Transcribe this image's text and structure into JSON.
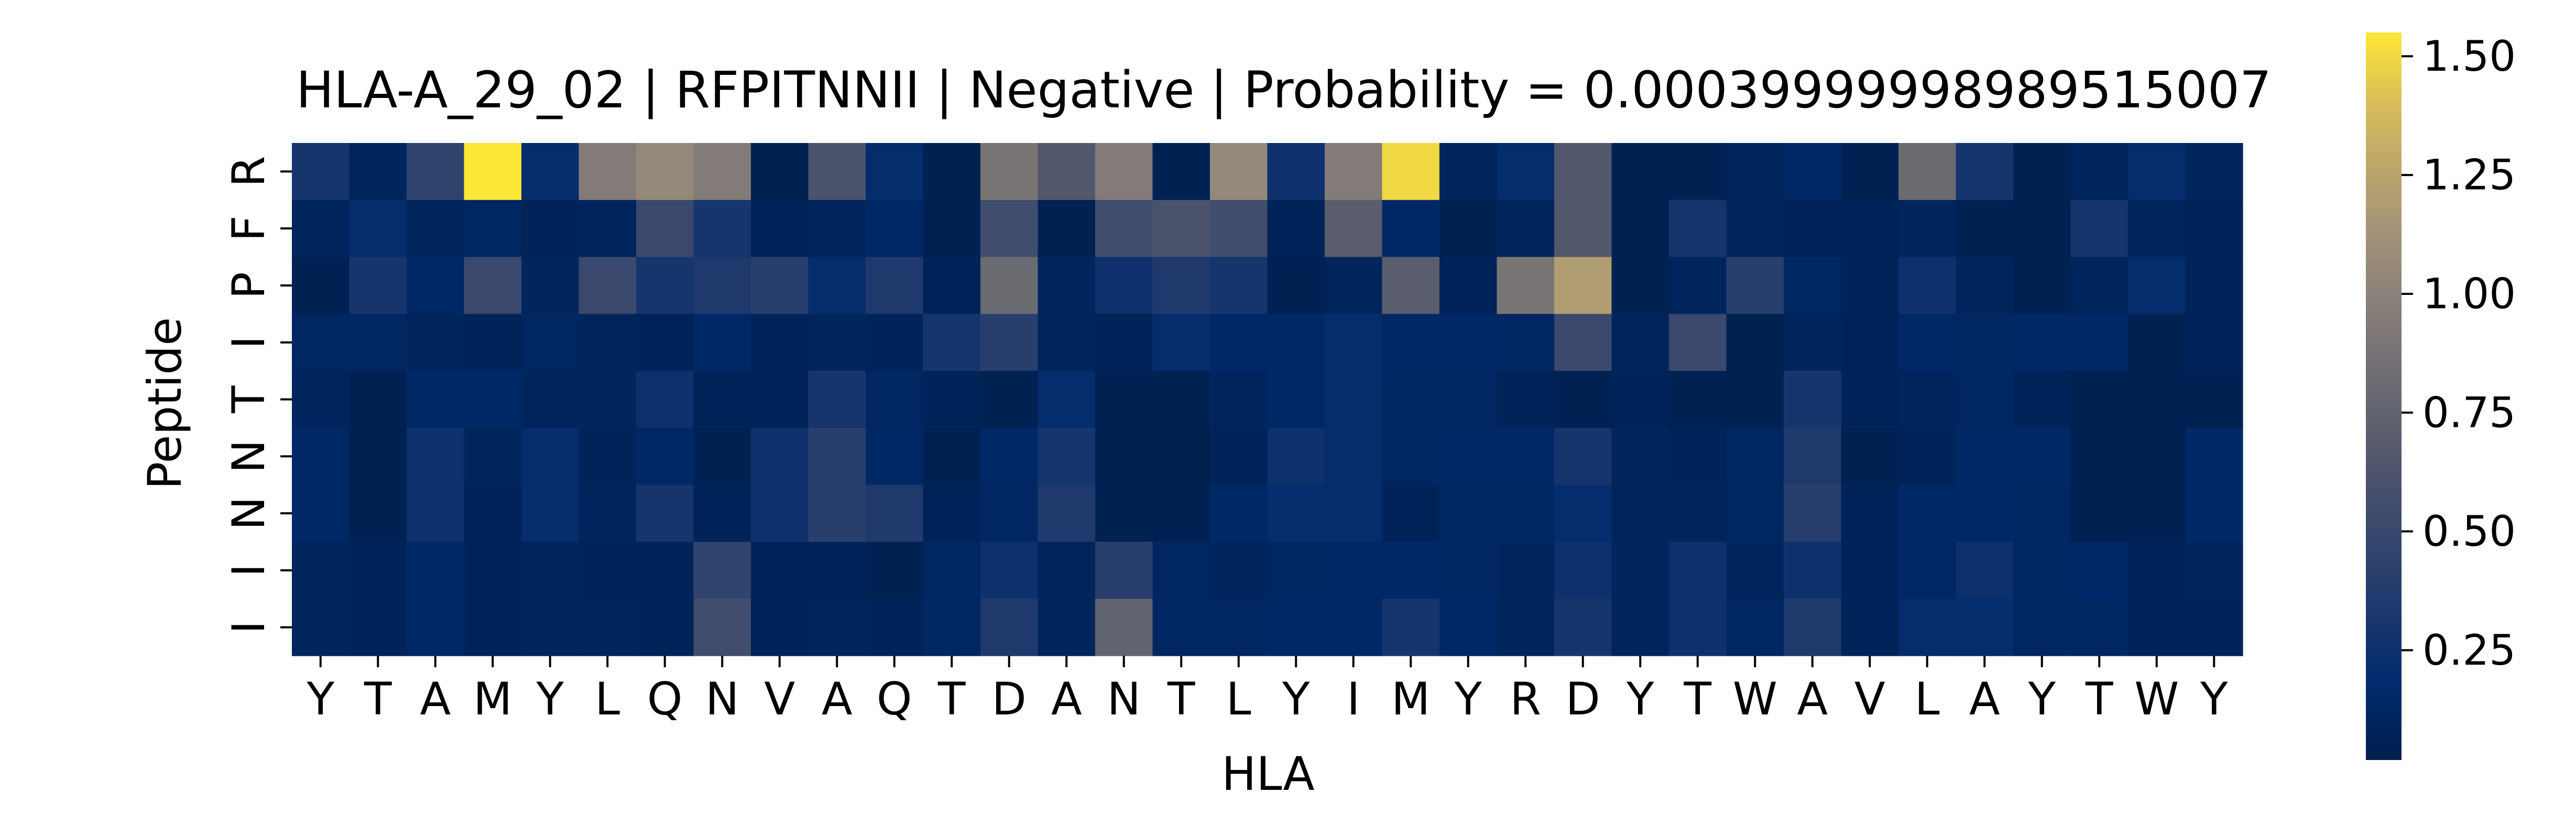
{
  "chart_data": {
    "type": "heatmap",
    "title": "HLA-A_29_02 | RFPITNNII | Negative | Probability = 0.00039999998989515007",
    "xlabel": "HLA",
    "ylabel": "Peptide",
    "x_ticks": [
      "Y",
      "T",
      "A",
      "M",
      "Y",
      "L",
      "Q",
      "N",
      "V",
      "A",
      "Q",
      "T",
      "D",
      "A",
      "N",
      "T",
      "L",
      "Y",
      "I",
      "M",
      "Y",
      "R",
      "D",
      "Y",
      "T",
      "W",
      "A",
      "V",
      "L",
      "A",
      "Y",
      "T",
      "W",
      "Y"
    ],
    "y_ticks": [
      "R",
      "F",
      "P",
      "I",
      "T",
      "N",
      "N",
      "I",
      "I"
    ],
    "colormap": "cividis",
    "colorbar": {
      "range": [
        0.02,
        1.55
      ],
      "ticks": [
        0.25,
        0.5,
        0.75,
        1.0,
        1.25,
        1.5
      ],
      "tick_labels": [
        "0.25",
        "0.50",
        "0.75",
        "1.00",
        "1.25",
        "1.50"
      ]
    },
    "values": [
      [
        0.3,
        0.1,
        0.45,
        1.55,
        0.2,
        0.95,
        1.05,
        0.95,
        0.05,
        0.6,
        0.2,
        0.05,
        0.9,
        0.65,
        0.95,
        0.05,
        1.05,
        0.25,
        0.95,
        1.5,
        0.1,
        0.2,
        0.65,
        0.05,
        0.05,
        0.1,
        0.15,
        0.05,
        0.8,
        0.3,
        0.05,
        0.1,
        0.2,
        0.1
      ],
      [
        0.1,
        0.2,
        0.1,
        0.12,
        0.08,
        0.1,
        0.5,
        0.3,
        0.08,
        0.1,
        0.15,
        0.05,
        0.55,
        0.05,
        0.55,
        0.6,
        0.55,
        0.08,
        0.7,
        0.15,
        0.05,
        0.1,
        0.65,
        0.05,
        0.3,
        0.1,
        0.08,
        0.08,
        0.1,
        0.05,
        0.05,
        0.3,
        0.1,
        0.08
      ],
      [
        0.05,
        0.3,
        0.15,
        0.5,
        0.1,
        0.5,
        0.3,
        0.35,
        0.4,
        0.2,
        0.35,
        0.08,
        0.8,
        0.1,
        0.25,
        0.35,
        0.3,
        0.05,
        0.1,
        0.7,
        0.08,
        0.9,
        1.2,
        0.05,
        0.1,
        0.4,
        0.12,
        0.08,
        0.25,
        0.1,
        0.05,
        0.1,
        0.2,
        0.08
      ],
      [
        0.12,
        0.12,
        0.1,
        0.08,
        0.12,
        0.1,
        0.08,
        0.15,
        0.08,
        0.1,
        0.08,
        0.3,
        0.4,
        0.1,
        0.08,
        0.2,
        0.15,
        0.15,
        0.2,
        0.15,
        0.15,
        0.12,
        0.5,
        0.1,
        0.5,
        0.05,
        0.1,
        0.08,
        0.15,
        0.12,
        0.15,
        0.15,
        0.05,
        0.08
      ],
      [
        0.1,
        0.05,
        0.15,
        0.15,
        0.1,
        0.1,
        0.25,
        0.08,
        0.08,
        0.3,
        0.12,
        0.08,
        0.05,
        0.2,
        0.05,
        0.05,
        0.1,
        0.15,
        0.2,
        0.12,
        0.12,
        0.08,
        0.05,
        0.08,
        0.05,
        0.05,
        0.3,
        0.08,
        0.1,
        0.12,
        0.08,
        0.05,
        0.05,
        0.05
      ],
      [
        0.15,
        0.05,
        0.25,
        0.1,
        0.2,
        0.08,
        0.15,
        0.05,
        0.25,
        0.4,
        0.15,
        0.05,
        0.15,
        0.3,
        0.03,
        0.03,
        0.08,
        0.25,
        0.2,
        0.12,
        0.15,
        0.15,
        0.3,
        0.1,
        0.08,
        0.12,
        0.35,
        0.05,
        0.08,
        0.15,
        0.15,
        0.05,
        0.05,
        0.15
      ],
      [
        0.15,
        0.05,
        0.25,
        0.08,
        0.2,
        0.1,
        0.3,
        0.08,
        0.25,
        0.4,
        0.35,
        0.08,
        0.12,
        0.35,
        0.05,
        0.05,
        0.15,
        0.2,
        0.2,
        0.08,
        0.12,
        0.12,
        0.2,
        0.1,
        0.1,
        0.12,
        0.4,
        0.08,
        0.15,
        0.15,
        0.12,
        0.05,
        0.05,
        0.15
      ],
      [
        0.1,
        0.08,
        0.15,
        0.08,
        0.1,
        0.08,
        0.08,
        0.45,
        0.08,
        0.08,
        0.05,
        0.12,
        0.25,
        0.1,
        0.4,
        0.12,
        0.1,
        0.12,
        0.15,
        0.15,
        0.12,
        0.1,
        0.25,
        0.1,
        0.25,
        0.1,
        0.25,
        0.08,
        0.15,
        0.25,
        0.12,
        0.15,
        0.08,
        0.1
      ],
      [
        0.1,
        0.08,
        0.15,
        0.08,
        0.1,
        0.1,
        0.08,
        0.55,
        0.08,
        0.1,
        0.08,
        0.12,
        0.35,
        0.1,
        0.75,
        0.12,
        0.12,
        0.15,
        0.15,
        0.3,
        0.15,
        0.1,
        0.3,
        0.1,
        0.25,
        0.12,
        0.35,
        0.08,
        0.2,
        0.2,
        0.12,
        0.12,
        0.08,
        0.08
      ]
    ]
  }
}
